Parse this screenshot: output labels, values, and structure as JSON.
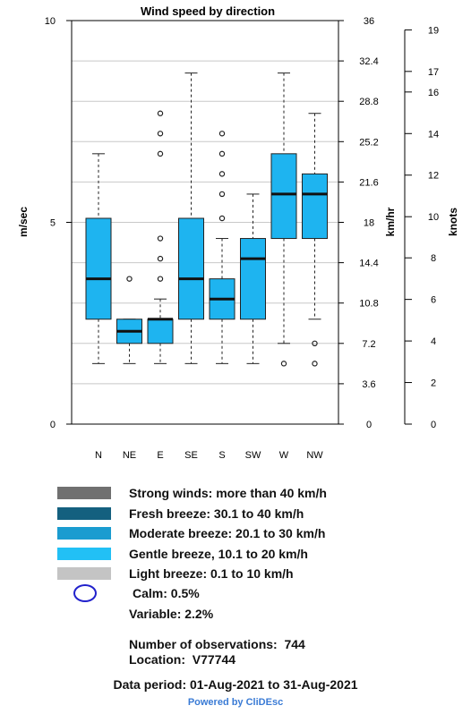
{
  "chart_data": {
    "type": "boxplot",
    "title": "Wind speed by direction",
    "ylabel_left": "m/sec",
    "ylabel_mid": "km/hr",
    "ylabel_right": "knots",
    "ylim": [
      0,
      10
    ],
    "left_ticks": [
      "0",
      "5",
      "10"
    ],
    "left_tick_values": [
      0,
      5,
      10
    ],
    "mid_ticks": [
      "0",
      "3.6",
      "7.2",
      "10.8",
      "14.4",
      "18",
      "21.6",
      "25.2",
      "28.8",
      "32.4",
      "36"
    ],
    "mid_tick_values": [
      0,
      1,
      2,
      3,
      4,
      5,
      6,
      7,
      8,
      9,
      10
    ],
    "right_ticks": [
      "0",
      "2",
      "4",
      "6",
      "8",
      "10",
      "12",
      "14",
      "16",
      "17",
      "19"
    ],
    "right_tick_values": [
      0,
      1.03,
      2.06,
      3.09,
      4.12,
      5.14,
      6.17,
      7.2,
      8.23,
      8.74,
      9.77
    ],
    "grid": true,
    "categories": [
      "N",
      "NE",
      "E",
      "SE",
      "S",
      "SW",
      "W",
      "NW"
    ],
    "boxes": [
      {
        "whisker_low": 1.5,
        "q1": 2.6,
        "median": 3.6,
        "q3": 5.1,
        "whisker_high": 6.7,
        "outliers": []
      },
      {
        "whisker_low": 1.5,
        "q1": 2.0,
        "median": 2.3,
        "q3": 2.6,
        "whisker_high": 2.6,
        "outliers": [
          3.6
        ]
      },
      {
        "whisker_low": 1.5,
        "q1": 2.0,
        "median": 2.6,
        "q3": 2.6,
        "whisker_high": 3.1,
        "outliers": [
          3.6,
          4.1,
          4.6,
          6.7,
          7.2,
          7.7
        ]
      },
      {
        "whisker_low": 1.5,
        "q1": 2.6,
        "median": 3.6,
        "q3": 5.1,
        "whisker_high": 8.7,
        "outliers": []
      },
      {
        "whisker_low": 1.5,
        "q1": 2.6,
        "median": 3.1,
        "q3": 3.6,
        "whisker_high": 4.6,
        "outliers": [
          5.1,
          5.7,
          6.2,
          6.7,
          7.2
        ]
      },
      {
        "whisker_low": 1.5,
        "q1": 2.6,
        "median": 4.1,
        "q3": 4.6,
        "whisker_high": 5.7,
        "outliers": []
      },
      {
        "whisker_low": 2.0,
        "q1": 4.6,
        "median": 5.7,
        "q3": 6.7,
        "whisker_high": 8.7,
        "outliers": [
          1.5
        ]
      },
      {
        "whisker_low": 2.6,
        "q1": 4.6,
        "median": 5.7,
        "q3": 6.2,
        "whisker_high": 7.7,
        "outliers": [
          1.5,
          2.0
        ]
      }
    ],
    "box_color": "#1eb4f0"
  },
  "legend": [
    {
      "label": "Strong winds: more than 40 km/h",
      "color": "#707070"
    },
    {
      "label": "Fresh breeze: 30.1 to 40 km/h",
      "color": "#14607f"
    },
    {
      "label": "Moderate breeze: 20.1 to 30 km/h",
      "color": "#1a9cd0"
    },
    {
      "label": "Gentle breeze, 10.1 to 20 km/h",
      "color": "#22c0f5"
    },
    {
      "label": "Light breeze: 0.1 to 10 km/h",
      "color": "#c4c4c4"
    }
  ],
  "calm_label": "Calm: 0.5%",
  "variable_label": "Variable: 2.2%",
  "observations_label": "Number of observations:",
  "observations_value": "744",
  "location_label": "Location:",
  "location_value": "V77744",
  "period_label": "Data period: 01-Aug-2021 to 31-Aug-2021",
  "powered_label": "Powered by CliDEsc"
}
